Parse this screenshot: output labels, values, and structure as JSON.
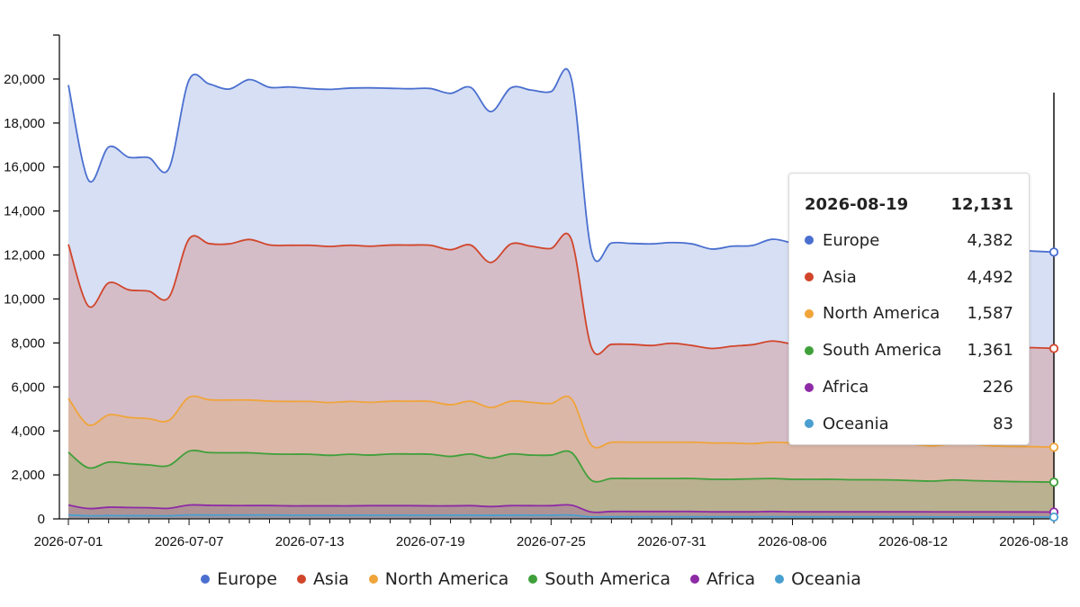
{
  "chart_data": {
    "type": "area",
    "stacked": true,
    "x": [
      "2026-07-01",
      "2026-07-02",
      "2026-07-03",
      "2026-07-04",
      "2026-07-05",
      "2026-07-06",
      "2026-07-07",
      "2026-07-08",
      "2026-07-09",
      "2026-07-10",
      "2026-07-11",
      "2026-07-12",
      "2026-07-13",
      "2026-07-14",
      "2026-07-15",
      "2026-07-16",
      "2026-07-17",
      "2026-07-18",
      "2026-07-19",
      "2026-07-20",
      "2026-07-21",
      "2026-07-22",
      "2026-07-23",
      "2026-07-24",
      "2026-07-25",
      "2026-07-26",
      "2026-07-27",
      "2026-07-28",
      "2026-07-29",
      "2026-07-30",
      "2026-07-31",
      "2026-08-01",
      "2026-08-02",
      "2026-08-03",
      "2026-08-04",
      "2026-08-05",
      "2026-08-06",
      "2026-08-07",
      "2026-08-08",
      "2026-08-09",
      "2026-08-10",
      "2026-08-11",
      "2026-08-12",
      "2026-08-13",
      "2026-08-14",
      "2026-08-15",
      "2026-08-16",
      "2026-08-17",
      "2026-08-18",
      "2026-08-19"
    ],
    "x_tick_labels": [
      "2026-07-01",
      "2026-07-07",
      "2026-07-13",
      "2026-07-19",
      "2026-07-25",
      "2026-07-31",
      "2026-08-06",
      "2026-08-12",
      "2026-08-18"
    ],
    "y_tick_labels": [
      "0",
      "2,000",
      "4,000",
      "6,000",
      "8,000",
      "10,000",
      "12,000",
      "14,000",
      "16,000",
      "18,000",
      "20,000"
    ],
    "ylim": [
      0,
      22000
    ],
    "grid": false,
    "legend_position": "bottom",
    "series": [
      {
        "name": "Europe",
        "color": "#4a6fcf",
        "values": [
          7250,
          5730,
          6180,
          6030,
          6070,
          5860,
          7230,
          7260,
          7040,
          7270,
          7170,
          7200,
          7130,
          7140,
          7150,
          7200,
          7130,
          7110,
          7130,
          7110,
          7170,
          6860,
          7100,
          7100,
          7130,
          7310,
          4390,
          4610,
          4590,
          4620,
          4580,
          4620,
          4520,
          4550,
          4510,
          4630,
          4580,
          4400,
          4500,
          4490,
          4520,
          4510,
          4450,
          4400,
          4390,
          4400,
          4410,
          4420,
          4390,
          4382
        ]
      },
      {
        "name": "Asia",
        "color": "#d1452b",
        "values": [
          7000,
          5400,
          6000,
          5800,
          5800,
          5600,
          7200,
          7100,
          7100,
          7300,
          7100,
          7100,
          7100,
          7100,
          7100,
          7100,
          7100,
          7100,
          7100,
          7050,
          7100,
          6600,
          7150,
          7100,
          7050,
          7250,
          4450,
          4450,
          4450,
          4400,
          4500,
          4400,
          4300,
          4400,
          4500,
          4600,
          4500,
          4400,
          4500,
          4500,
          4500,
          4500,
          4500,
          4500,
          4500,
          4500,
          4500,
          4500,
          4500,
          4492
        ]
      },
      {
        "name": "North America",
        "color": "#f0a43a",
        "values": [
          2450,
          1950,
          2150,
          2100,
          2100,
          2050,
          2450,
          2400,
          2400,
          2400,
          2400,
          2400,
          2400,
          2400,
          2400,
          2400,
          2400,
          2400,
          2400,
          2350,
          2400,
          2300,
          2400,
          2400,
          2350,
          2450,
          1600,
          1650,
          1650,
          1650,
          1650,
          1650,
          1650,
          1650,
          1600,
          1650,
          1650,
          1650,
          1650,
          1650,
          1650,
          1650,
          1650,
          1600,
          1650,
          1650,
          1600,
          1600,
          1600,
          1587
        ]
      },
      {
        "name": "South America",
        "color": "#3fa03a",
        "values": [
          2400,
          1850,
          2050,
          2000,
          1950,
          1950,
          2450,
          2400,
          2400,
          2400,
          2350,
          2350,
          2350,
          2300,
          2350,
          2300,
          2350,
          2350,
          2350,
          2250,
          2350,
          2200,
          2350,
          2300,
          2300,
          2400,
          1450,
          1500,
          1500,
          1500,
          1500,
          1500,
          1480,
          1480,
          1500,
          1500,
          1480,
          1480,
          1480,
          1460,
          1460,
          1450,
          1420,
          1400,
          1450,
          1420,
          1400,
          1380,
          1370,
          1361
        ]
      },
      {
        "name": "Africa",
        "color": "#8e2aa6",
        "values": [
          450,
          330,
          380,
          370,
          360,
          340,
          450,
          440,
          430,
          430,
          430,
          420,
          420,
          420,
          420,
          430,
          430,
          430,
          420,
          420,
          430,
          400,
          430,
          430,
          430,
          450,
          220,
          240,
          240,
          240,
          240,
          240,
          230,
          230,
          230,
          240,
          230,
          230,
          230,
          230,
          230,
          230,
          230,
          230,
          230,
          230,
          230,
          230,
          230,
          226
        ]
      },
      {
        "name": "Oceania",
        "color": "#4a9fd0",
        "values": [
          180,
          140,
          150,
          145,
          145,
          140,
          180,
          175,
          175,
          175,
          175,
          170,
          170,
          170,
          170,
          170,
          170,
          170,
          170,
          170,
          170,
          160,
          170,
          170,
          170,
          175,
          90,
          95,
          95,
          95,
          95,
          95,
          90,
          90,
          90,
          95,
          90,
          90,
          90,
          90,
          90,
          90,
          90,
          88,
          88,
          88,
          86,
          85,
          84,
          83
        ]
      }
    ]
  },
  "tooltip": {
    "date": "2026-08-19",
    "total": "12,131",
    "rows": [
      {
        "name": "Europe",
        "value": "4,382",
        "color": "#4a6fcf"
      },
      {
        "name": "Asia",
        "value": "4,492",
        "color": "#d1452b"
      },
      {
        "name": "North America",
        "value": "1,587",
        "color": "#f0a43a"
      },
      {
        "name": "South America",
        "value": "1,361",
        "color": "#3fa03a"
      },
      {
        "name": "Africa",
        "value": "226",
        "color": "#8e2aa6"
      },
      {
        "name": "Oceania",
        "value": "83",
        "color": "#4a9fd0"
      }
    ]
  },
  "legend": [
    {
      "name": "Europe",
      "color": "#4a6fcf"
    },
    {
      "name": "Asia",
      "color": "#d1452b"
    },
    {
      "name": "North America",
      "color": "#f0a43a"
    },
    {
      "name": "South America",
      "color": "#3fa03a"
    },
    {
      "name": "Africa",
      "color": "#8e2aa6"
    },
    {
      "name": "Oceania",
      "color": "#4a9fd0"
    }
  ]
}
